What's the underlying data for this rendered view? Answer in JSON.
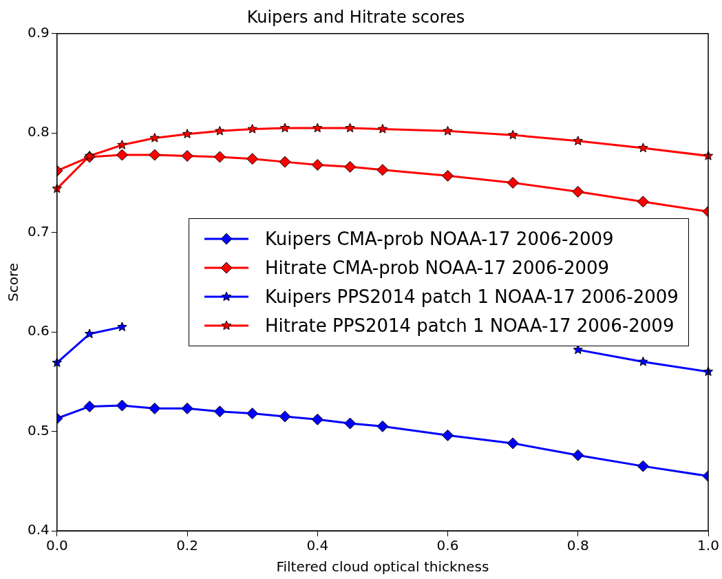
{
  "chart_data": {
    "type": "line",
    "title": "Kuipers and Hitrate scores",
    "xlabel": "Filtered cloud optical thickness",
    "ylabel": "Score",
    "x": [
      0,
      0.05,
      0.1,
      0.15,
      0.2,
      0.25,
      0.3,
      0.35,
      0.4,
      0.45,
      0.5,
      0.6,
      0.7,
      0.8,
      0.9,
      1.0
    ],
    "xlim": [
      0,
      1
    ],
    "xticks": [
      {
        "value": 0,
        "label": "0.0"
      },
      0.2,
      0.4,
      0.6,
      0.8,
      {
        "value": 1,
        "label": "1.0"
      }
    ],
    "ylim": [
      0.4,
      0.9
    ],
    "yticks": [
      0.4,
      0.5,
      0.6,
      0.7,
      0.8,
      0.9
    ],
    "grid": false,
    "legend": "right",
    "line_style": "solid",
    "series": [
      {
        "name": "Kuipers CMA-prob NOAA-17 2006-2009",
        "color": "#0000ff",
        "marker": "diamond",
        "values": [
          0.513,
          0.525,
          0.526,
          0.523,
          0.523,
          0.52,
          0.518,
          0.515,
          0.512,
          0.508,
          0.505,
          0.496,
          0.488,
          0.476,
          0.465,
          0.455
        ]
      },
      {
        "name": "Hitrate CMA-prob NOAA-17 2006-2009",
        "color": "#ff0000",
        "marker": "diamond",
        "values": [
          0.762,
          0.776,
          0.778,
          0.778,
          0.777,
          0.776,
          0.774,
          0.771,
          0.768,
          0.766,
          0.763,
          0.757,
          0.75,
          0.741,
          0.731,
          0.721
        ]
      },
      {
        "name": "Kuipers PPS2014 patch 1 NOAA-17 2006-2009",
        "color": "#0000ff",
        "marker": "star",
        "values": [
          0.569,
          0.598,
          0.605,
          null,
          null,
          null,
          null,
          null,
          null,
          null,
          null,
          null,
          null,
          0.582,
          0.57,
          0.56
        ]
      },
      {
        "name": "Hitrate PPS2014 patch 1 NOAA-17 2006-2009",
        "color": "#ff0000",
        "marker": "star",
        "values": [
          0.744,
          0.777,
          0.788,
          0.795,
          0.799,
          0.802,
          0.804,
          0.805,
          0.805,
          0.805,
          0.804,
          0.802,
          0.798,
          0.792,
          0.785,
          0.777
        ]
      }
    ]
  }
}
